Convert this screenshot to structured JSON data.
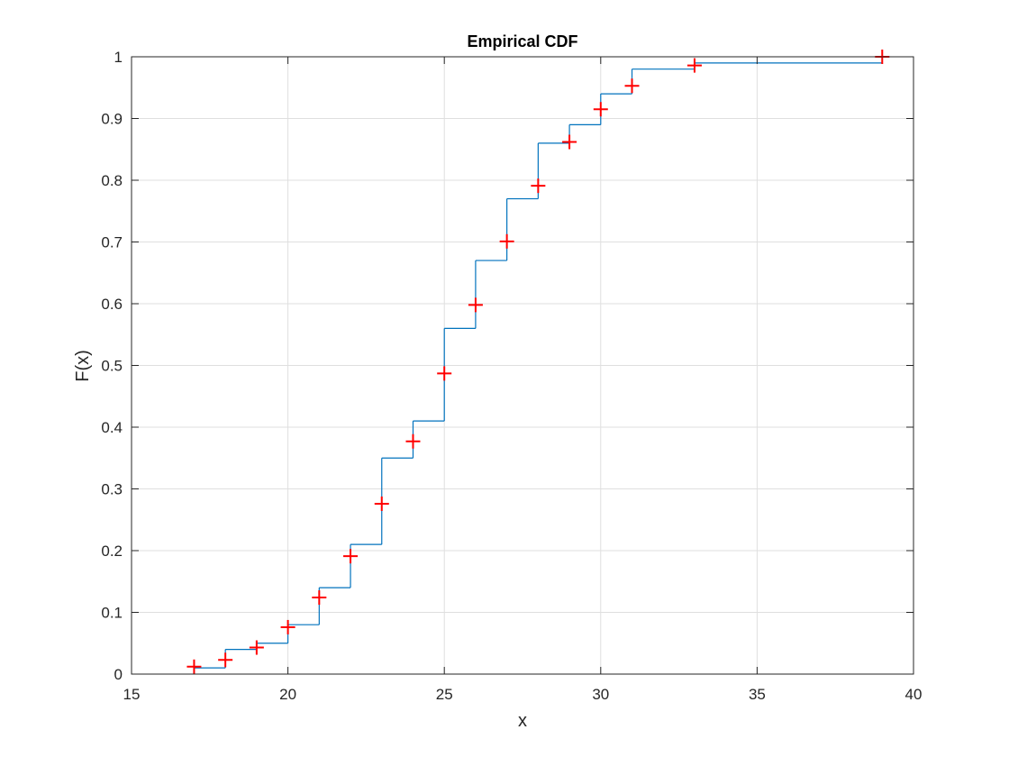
{
  "figure": {
    "background": "#ffffff"
  },
  "chart_data": {
    "type": "line",
    "title": "Empirical CDF",
    "xlabel": "x",
    "ylabel": "F(x)",
    "xlim": [
      15,
      40
    ],
    "ylim": [
      0,
      1
    ],
    "xticks": [
      15,
      20,
      25,
      30,
      35,
      40
    ],
    "xtick_labels": [
      "15",
      "20",
      "25",
      "30",
      "35",
      "40"
    ],
    "yticks": [
      0,
      0.1,
      0.2,
      0.3,
      0.4,
      0.5,
      0.6,
      0.7,
      0.8,
      0.9,
      1
    ],
    "ytick_labels": [
      "0",
      "0.1",
      "0.2",
      "0.3",
      "0.4",
      "0.5",
      "0.6",
      "0.7",
      "0.8",
      "0.9",
      "1"
    ],
    "grid": true,
    "box": true,
    "series": [
      {
        "kind": "stairs",
        "color": "#0072bd",
        "x": [
          17,
          18,
          19,
          20,
          21,
          22,
          23,
          24,
          25,
          26,
          27,
          28,
          29,
          30,
          31,
          33,
          39
        ],
        "y": [
          0.01,
          0.04,
          0.05,
          0.08,
          0.14,
          0.21,
          0.35,
          0.41,
          0.56,
          0.67,
          0.77,
          0.86,
          0.89,
          0.94,
          0.98,
          0.99,
          0.99
        ]
      },
      {
        "kind": "markers",
        "marker": "+",
        "color": "#ff0000",
        "x": [
          17,
          18,
          19,
          20,
          21,
          22,
          23,
          24,
          25,
          26,
          27,
          28,
          29,
          30,
          31,
          33,
          39
        ],
        "y": [
          0.012,
          0.023,
          0.043,
          0.076,
          0.124,
          0.191,
          0.276,
          0.377,
          0.487,
          0.598,
          0.701,
          0.791,
          0.862,
          0.915,
          0.953,
          0.986,
          1.0
        ]
      }
    ],
    "colors": {
      "axes": "#262626",
      "grid": "#dfdfdf",
      "title": "#000000"
    }
  }
}
